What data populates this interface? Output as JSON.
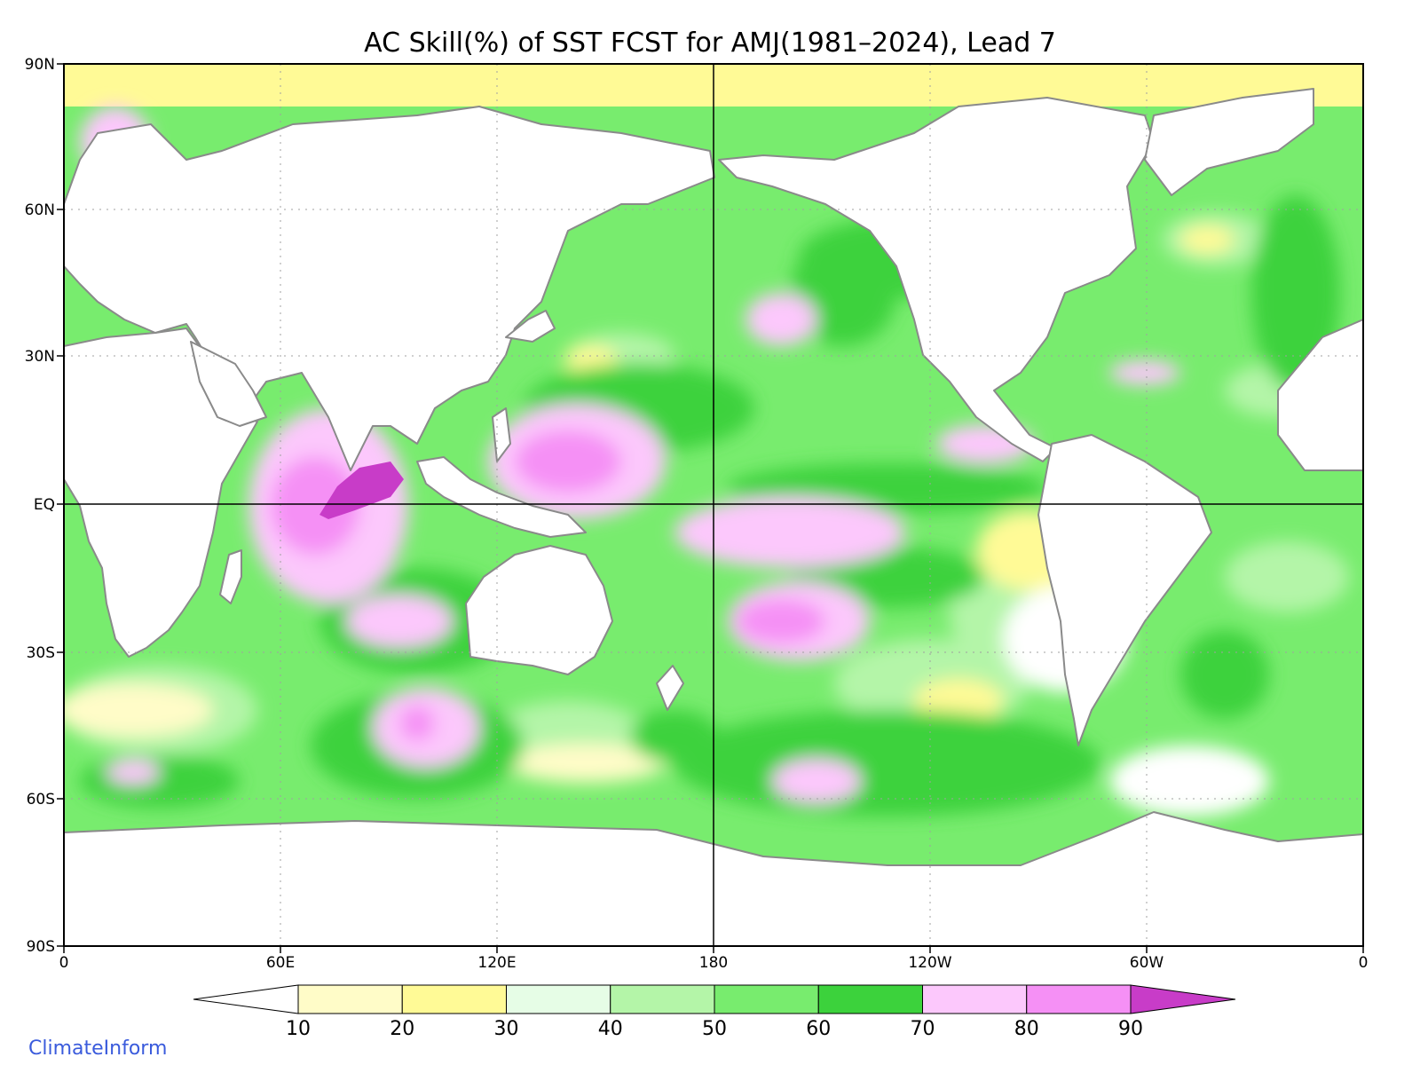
{
  "title": "AC Skill(%) of SST FCST for AMJ(1981–2024), Lead 7",
  "credit": "ClimateInform",
  "axes": {
    "y_ticks": [
      "90N",
      "60N",
      "30N",
      "EQ",
      "30S",
      "60S",
      "90S"
    ],
    "x_ticks": [
      "0",
      "60E",
      "120E",
      "180",
      "120W",
      "60W",
      "0"
    ]
  },
  "colorbar": {
    "labels": [
      "10",
      "20",
      "30",
      "40",
      "50",
      "60",
      "70",
      "80",
      "90"
    ],
    "colors": [
      "#ffffff",
      "#fffcc8",
      "#fffa96",
      "#e6fde6",
      "#b4f5a8",
      "#78ec6e",
      "#3cd23c",
      "#fcc8fc",
      "#f590f5",
      "#c83cc8"
    ]
  },
  "colors": {
    "land": "#ffffff",
    "coast": "#8a8a8a",
    "grid": "#a0a0a0",
    "frame": "#000000"
  }
}
